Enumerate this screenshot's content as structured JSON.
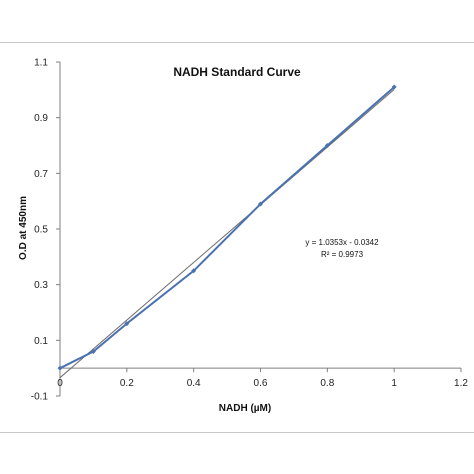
{
  "chart_data": {
    "type": "line",
    "title": "NADH Standard Curve",
    "xlabel": "NADH (µM)",
    "ylabel": "O.D at 450nm",
    "xlim": [
      0,
      1.2
    ],
    "ylim": [
      -0.1,
      1.1
    ],
    "x_ticks": [
      0,
      0.2,
      0.4,
      0.6,
      0.8,
      1,
      1.2
    ],
    "x_tick_labels": [
      "0",
      "0.2",
      "0.4",
      "0.6",
      "0.8",
      "1",
      "1.2"
    ],
    "y_ticks": [
      -0.1,
      0.1,
      0.3,
      0.5,
      0.7,
      0.9,
      1.1
    ],
    "y_tick_labels": [
      "-0.1",
      "0.1",
      "0.3",
      "0.5",
      "0.7",
      "0.9",
      "1.1"
    ],
    "grid": false,
    "legend": "none",
    "series": [
      {
        "x": [
          0,
          0.1,
          0.2,
          0.4,
          0.6,
          0.8,
          1.0
        ],
        "y": [
          0.0,
          0.06,
          0.16,
          0.35,
          0.59,
          0.8,
          1.01
        ],
        "color": "#4a72b0",
        "marker": "diamond"
      }
    ],
    "trendline": {
      "type": "linear",
      "slope": 1.0353,
      "intercept": -0.0342,
      "color": "#6e6e6e",
      "equation": "y = 1.0353x - 0.0342",
      "r_squared": "R² = 0.9973"
    }
  }
}
